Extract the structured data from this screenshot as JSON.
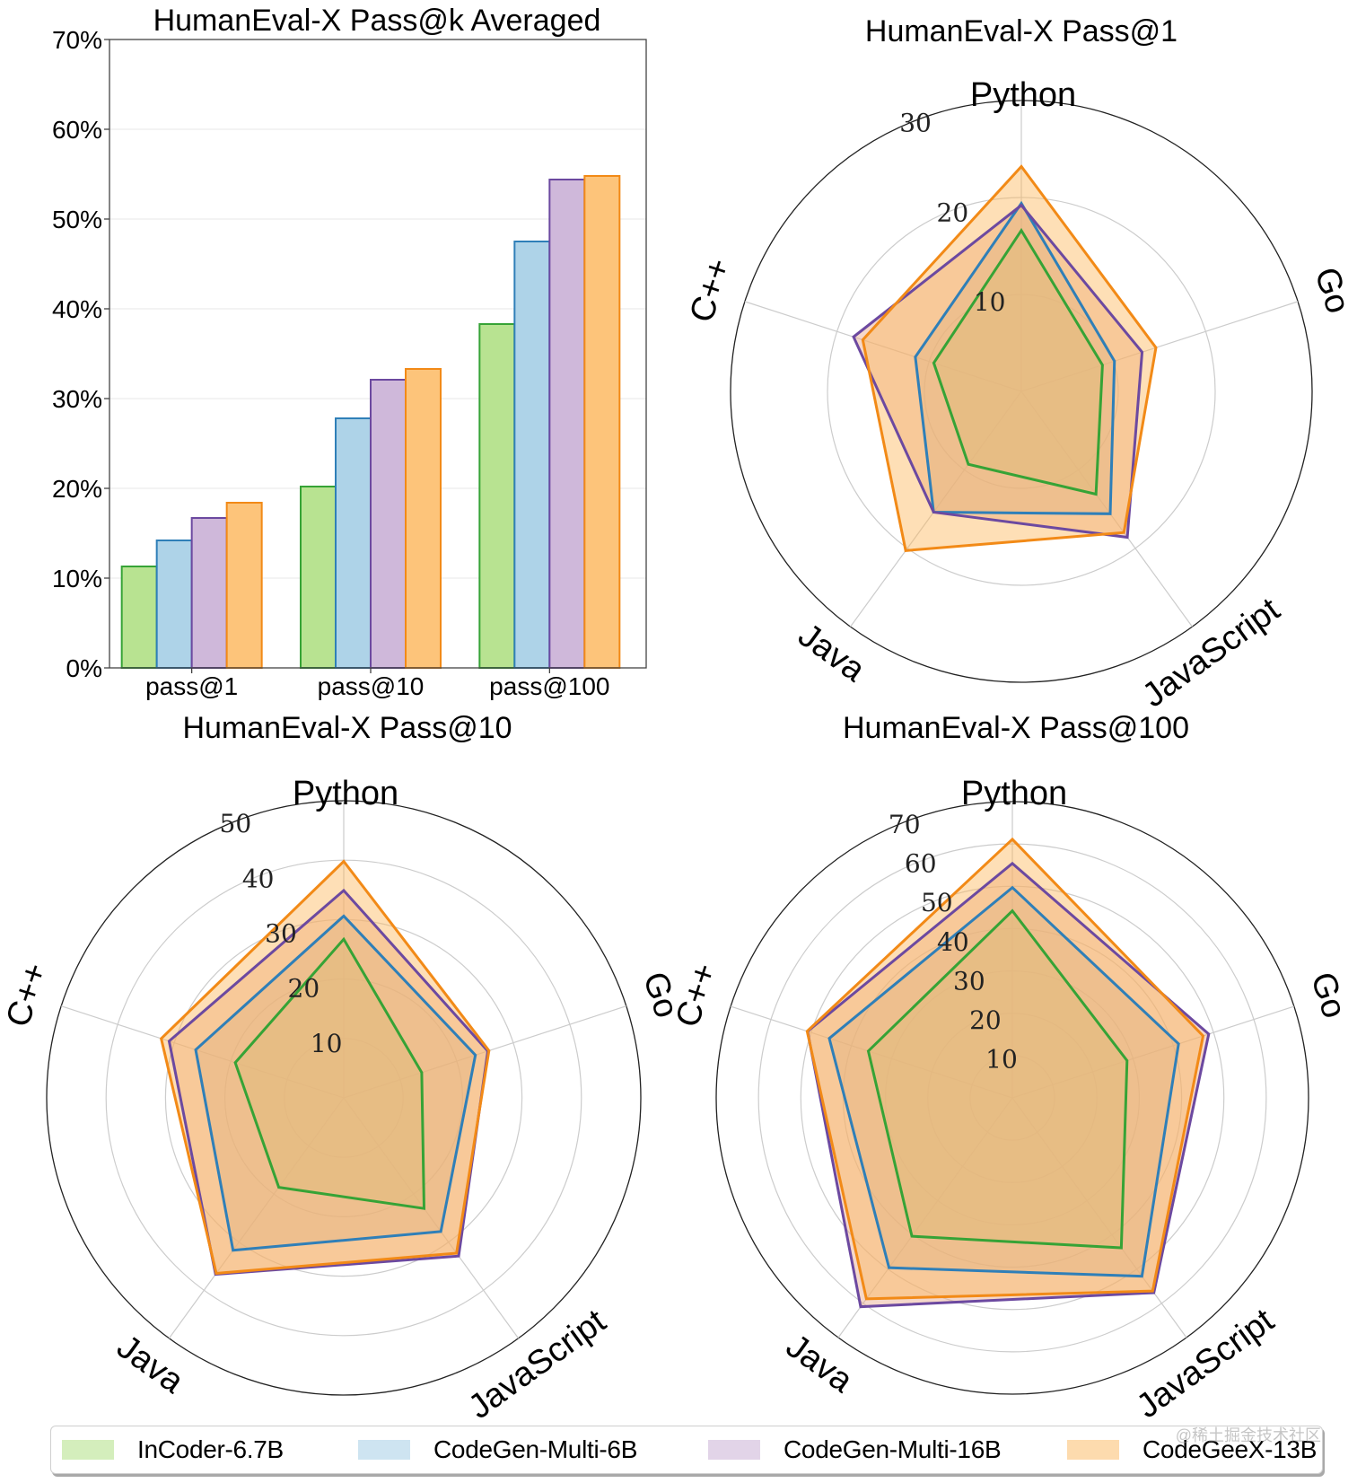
{
  "legend": {
    "items": [
      {
        "label": "InCoder-6.7B",
        "color": "#b8e391",
        "edge": "#36a336"
      },
      {
        "label": "CodeGen-Multi-6B",
        "color": "#aed3e8",
        "edge": "#2f7fb8"
      },
      {
        "label": "CodeGen-Multi-16B",
        "color": "#cfb8da",
        "edge": "#6c49a0"
      },
      {
        "label": "CodeGeeX-13B",
        "color": "#fdc47a",
        "edge": "#f28a17"
      }
    ]
  },
  "watermark": "@稀土掘金技术社区",
  "chart_data": [
    {
      "type": "bar",
      "title": "HumanEval-X Pass@k Averaged",
      "xlabel": "",
      "ylabel": "",
      "ylim": [
        0,
        70
      ],
      "yticks": [
        0,
        10,
        20,
        30,
        40,
        50,
        60,
        70
      ],
      "ytick_labels": [
        "0%",
        "10%",
        "20%",
        "30%",
        "40%",
        "50%",
        "60%",
        "70%"
      ],
      "grid": true,
      "categories": [
        "pass@1",
        "pass@10",
        "pass@100"
      ],
      "series": [
        {
          "name": "InCoder-6.7B",
          "values": [
            11.3,
            20.2,
            38.3
          ]
        },
        {
          "name": "CodeGen-Multi-6B",
          "values": [
            14.2,
            27.8,
            47.5
          ]
        },
        {
          "name": "CodeGen-Multi-16B",
          "values": [
            16.7,
            32.1,
            54.4
          ]
        },
        {
          "name": "CodeGeeX-13B",
          "values": [
            18.4,
            33.3,
            54.8
          ]
        }
      ]
    },
    {
      "type": "radar",
      "title": "HumanEval-X Pass@1",
      "axes": [
        "Python",
        "Go",
        "JavaScript",
        "Java",
        "C++"
      ],
      "rmax": 30,
      "rticks": [
        10,
        20,
        30
      ],
      "series": [
        {
          "name": "InCoder-6.7B",
          "values": [
            16.6,
            8.8,
            13.1,
            9.3,
            9.5
          ]
        },
        {
          "name": "CodeGen-Multi-6B",
          "values": [
            19.4,
            10.1,
            15.6,
            15.4,
            11.5
          ]
        },
        {
          "name": "CodeGen-Multi-16B",
          "values": [
            19.2,
            13.1,
            18.6,
            15.4,
            18.2
          ]
        },
        {
          "name": "CodeGeeX-13B",
          "values": [
            23.2,
            14.6,
            18.0,
            20.3,
            17.2
          ]
        }
      ]
    },
    {
      "type": "radar",
      "title": "HumanEval-X Pass@10",
      "axes": [
        "Python",
        "Go",
        "JavaScript",
        "Java",
        "C++"
      ],
      "rmax": 50,
      "rticks": [
        10,
        20,
        30,
        40,
        50
      ],
      "series": [
        {
          "name": "InCoder-6.7B",
          "values": [
            26.7,
            13.8,
            23.0,
            18.6,
            19.2
          ]
        },
        {
          "name": "CodeGen-Multi-6B",
          "values": [
            30.6,
            23.3,
            27.8,
            31.7,
            26.2
          ]
        },
        {
          "name": "CodeGen-Multi-16B",
          "values": [
            34.9,
            25.5,
            32.9,
            36.7,
            30.9
          ]
        },
        {
          "name": "CodeGeeX-13B",
          "values": [
            39.8,
            25.7,
            32.3,
            36.5,
            32.3
          ]
        }
      ]
    },
    {
      "type": "radar",
      "title": "HumanEval-X Pass@100",
      "axes": [
        "Python",
        "Go",
        "JavaScript",
        "Java",
        "C++"
      ],
      "rmax": 70,
      "rticks": [
        10,
        20,
        30,
        40,
        50,
        60,
        70
      ],
      "series": [
        {
          "name": "InCoder-6.7B",
          "values": [
            44.2,
            28.5,
            43.8,
            40.4,
            35.8
          ]
        },
        {
          "name": "CodeGen-Multi-6B",
          "values": [
            49.7,
            41.3,
            52.1,
            49.6,
            45.5
          ]
        },
        {
          "name": "CodeGen-Multi-16B",
          "values": [
            55.4,
            48.8,
            56.9,
            61.0,
            50.9
          ]
        },
        {
          "name": "CodeGeeX-13B",
          "values": [
            61.1,
            47.4,
            56.4,
            58.7,
            51.0
          ]
        }
      ]
    }
  ]
}
